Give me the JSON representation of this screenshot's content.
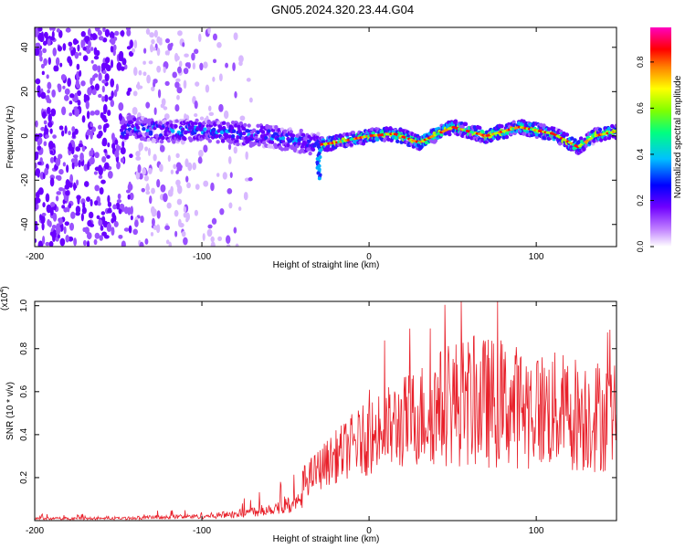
{
  "title": "GN05.2024.320.23.44.G04",
  "chart_data": [
    {
      "type": "heatmap",
      "xlabel": "Height of straight line (km)",
      "ylabel": "Frequency (Hz)",
      "xlim": [
        -200,
        148
      ],
      "ylim": [
        -50,
        49
      ],
      "x_ticks": [
        -200,
        -100,
        0,
        100
      ],
      "x_tick_labels": [
        "-200",
        "-100",
        "0",
        "100"
      ],
      "y_ticks": [
        -40,
        -20,
        0,
        20,
        40
      ],
      "y_tick_labels": [
        "-40",
        "-20",
        "0",
        "20",
        "40"
      ],
      "colorbar": {
        "label": "Normalized spectral amplitude",
        "range": [
          0,
          0.95
        ],
        "ticks": [
          0.0,
          0.2,
          0.4,
          0.6,
          0.8
        ],
        "tick_labels": [
          "0.0",
          "0.2",
          "0.4",
          "0.6",
          "0.8"
        ],
        "colormap": [
          "#ffffff",
          "#8000ff",
          "#0000ff",
          "#00ffff",
          "#00ff00",
          "#ffff00",
          "#ff8000",
          "#ff0000",
          "#ff00ff"
        ]
      },
      "signal_track": {
        "description_points": [
          {
            "x": -145,
            "f": 4
          },
          {
            "x": -120,
            "f": 2
          },
          {
            "x": -100,
            "f": 3
          },
          {
            "x": -80,
            "f": 1
          },
          {
            "x": -60,
            "f": 0
          },
          {
            "x": -45,
            "f": -2
          },
          {
            "x": -30,
            "f": -4
          },
          {
            "x": -20,
            "f": -3
          },
          {
            "x": 0,
            "f": 0
          },
          {
            "x": 15,
            "f": 1
          },
          {
            "x": 30,
            "f": -3
          },
          {
            "x": 50,
            "f": 4
          },
          {
            "x": 70,
            "f": 0
          },
          {
            "x": 90,
            "f": 4
          },
          {
            "x": 110,
            "f": 1
          },
          {
            "x": 125,
            "f": -5
          },
          {
            "x": 135,
            "f": 0
          },
          {
            "x": 148,
            "f": 2
          }
        ],
        "noise_region_end_km": -70
      }
    },
    {
      "type": "line",
      "xlabel": "Height of straight line (km)",
      "ylabel": "SNR (10 * v/v)",
      "y_scale_label": "(x10",
      "y_scale_exp": "4",
      "y_scale_close": ")",
      "xlim": [
        -200,
        148
      ],
      "ylim": [
        0,
        1.02
      ],
      "x_ticks": [
        -200,
        -100,
        0,
        100
      ],
      "x_tick_labels": [
        "-200",
        "-100",
        "0",
        "100"
      ],
      "y_ticks": [
        0.2,
        0.4,
        0.6,
        0.8,
        1.0
      ],
      "y_tick_labels": [
        "0.2",
        "0.4",
        "0.6",
        "0.8",
        "1.0"
      ],
      "series_color": "#e8202a",
      "envelope": [
        {
          "x": -200,
          "base": 0.01,
          "amp": 0.02
        },
        {
          "x": -150,
          "base": 0.01,
          "amp": 0.02
        },
        {
          "x": -130,
          "base": 0.015,
          "amp": 0.03
        },
        {
          "x": -100,
          "base": 0.02,
          "amp": 0.04
        },
        {
          "x": -80,
          "base": 0.03,
          "amp": 0.06
        },
        {
          "x": -60,
          "base": 0.06,
          "amp": 0.1
        },
        {
          "x": -40,
          "base": 0.1,
          "amp": 0.15
        },
        {
          "x": -25,
          "base": 0.16,
          "amp": 0.22
        },
        {
          "x": -10,
          "base": 0.2,
          "amp": 0.3
        },
        {
          "x": 10,
          "base": 0.22,
          "amp": 0.4
        },
        {
          "x": 30,
          "base": 0.25,
          "amp": 0.48
        },
        {
          "x": 50,
          "base": 0.25,
          "amp": 0.6
        },
        {
          "x": 70,
          "base": 0.24,
          "amp": 0.62
        },
        {
          "x": 100,
          "base": 0.24,
          "amp": 0.56
        },
        {
          "x": 130,
          "base": 0.22,
          "amp": 0.55
        },
        {
          "x": 148,
          "base": 0.22,
          "amp": 0.52
        }
      ],
      "peak_max": 1.02
    }
  ]
}
